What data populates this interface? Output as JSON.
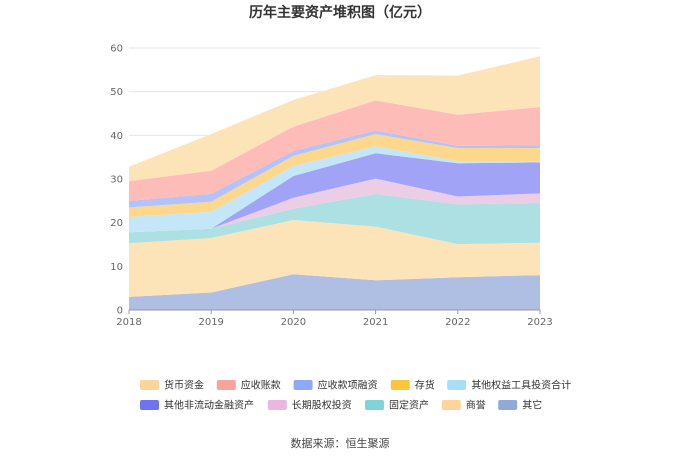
{
  "chart_data": {
    "type": "area",
    "title": "历年主要资产堆积图（亿元）",
    "x": [
      "2018",
      "2019",
      "2020",
      "2021",
      "2022",
      "2023"
    ],
    "ylim": [
      0,
      60
    ],
    "yticks": [
      0,
      10,
      20,
      30,
      40,
      50,
      60
    ],
    "grid": true,
    "stacked": true,
    "series": [
      {
        "name": "其它",
        "color": "#aebfe3",
        "values": [
          3.0,
          4.0,
          8.2,
          6.8,
          7.5,
          8.0
        ]
      },
      {
        "name": "商誉",
        "color": "#fde4b8",
        "values": [
          12.3,
          12.5,
          12.4,
          12.3,
          7.6,
          7.4
        ]
      },
      {
        "name": "固定资产",
        "color": "#ade0e2",
        "values": [
          2.5,
          2.1,
          2.6,
          7.5,
          9.1,
          9.1
        ]
      },
      {
        "name": "长期股权投资",
        "color": "#ebcde6",
        "values": [
          0.0,
          0.0,
          2.5,
          3.5,
          1.8,
          2.2
        ]
      },
      {
        "name": "其他非流动金融资产",
        "color": "#a1a4f6",
        "values": [
          0.0,
          0.0,
          5.0,
          5.8,
          7.6,
          7.1
        ]
      },
      {
        "name": "其他权益工具投资合计",
        "color": "#c3e7f8",
        "values": [
          3.5,
          3.9,
          2.3,
          1.6,
          0.5,
          0.3
        ]
      },
      {
        "name": "存货",
        "color": "#fdd88c",
        "values": [
          2.2,
          2.3,
          2.3,
          2.8,
          3.0,
          3.0
        ]
      },
      {
        "name": "应收款项融资",
        "color": "#b3c2f8",
        "values": [
          1.5,
          1.8,
          1.1,
          0.8,
          0.5,
          0.6
        ]
      },
      {
        "name": "应收账款",
        "color": "#fdbcb8",
        "values": [
          4.5,
          5.3,
          5.6,
          6.9,
          7.1,
          8.8
        ]
      },
      {
        "name": "货币资金",
        "color": "#fde4b8",
        "values": [
          3.3,
          8.4,
          6.1,
          5.8,
          9.0,
          11.6
        ]
      }
    ],
    "legend": [
      {
        "name": "货币资金",
        "color": "#fdd49a"
      },
      {
        "name": "应收账款",
        "color": "#f7a49c"
      },
      {
        "name": "应收款项融资",
        "color": "#8fa8f7"
      },
      {
        "name": "存货",
        "color": "#fbc43e"
      },
      {
        "name": "其他权益工具投资合计",
        "color": "#a8def7"
      },
      {
        "name": "其他非流动金融资产",
        "color": "#6f73f0"
      },
      {
        "name": "长期股权投资",
        "color": "#e8b8de"
      },
      {
        "name": "固定资产",
        "color": "#80d3d6"
      },
      {
        "name": "商誉",
        "color": "#fdd49a"
      },
      {
        "name": "其它",
        "color": "#8eaad8"
      }
    ],
    "legend_position": "bottom"
  },
  "source": "数据来源：恒生聚源"
}
